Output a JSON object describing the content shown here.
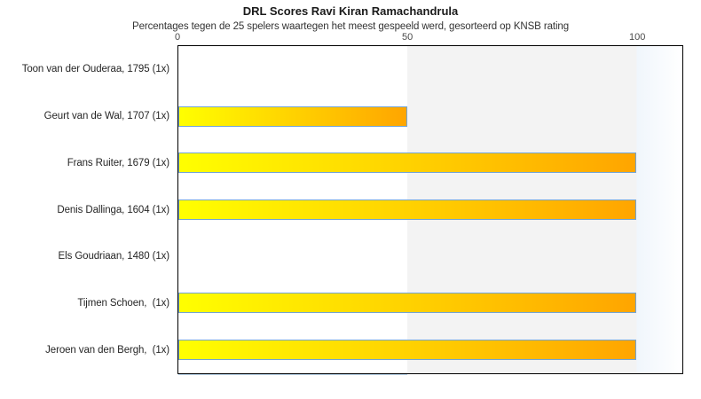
{
  "chart_data": {
    "type": "bar",
    "orientation": "horizontal",
    "title": "DRL Scores Ravi Kiran Ramachandrula",
    "subtitle": "Percentages tegen de 25 spelers waartegen het meest gespeeld werd, gesorteerd op KNSB rating",
    "categories": [
      "Toon van der Ouderaa, 1795 (1x)",
      "Geurt van de Wal, 1707 (1x)",
      "Frans Ruiter, 1679 (1x)",
      "Denis Dallinga, 1604 (1x)",
      "Els Goudriaan, 1480 (1x)",
      "Tijmen Schoen,  (1x)",
      "Jeroen van den Bergh,  (1x)"
    ],
    "values": [
      0,
      50,
      100,
      100,
      0,
      100,
      100
    ],
    "xlabel": "",
    "ylabel": "",
    "xticks": [
      0,
      50,
      100
    ],
    "xlim": [
      0,
      110
    ],
    "grid": false,
    "legend": false,
    "band_boundaries": [
      50,
      100
    ],
    "colors": {
      "bar_gradient_start": "#ffff00",
      "bar_gradient_end": "#ffa500",
      "bar_border": "#72a4d4",
      "band_low": "#ffffff",
      "band_mid": "#f3f3f3",
      "band_high": "#f0f6fc",
      "plot_border": "#000000"
    }
  }
}
